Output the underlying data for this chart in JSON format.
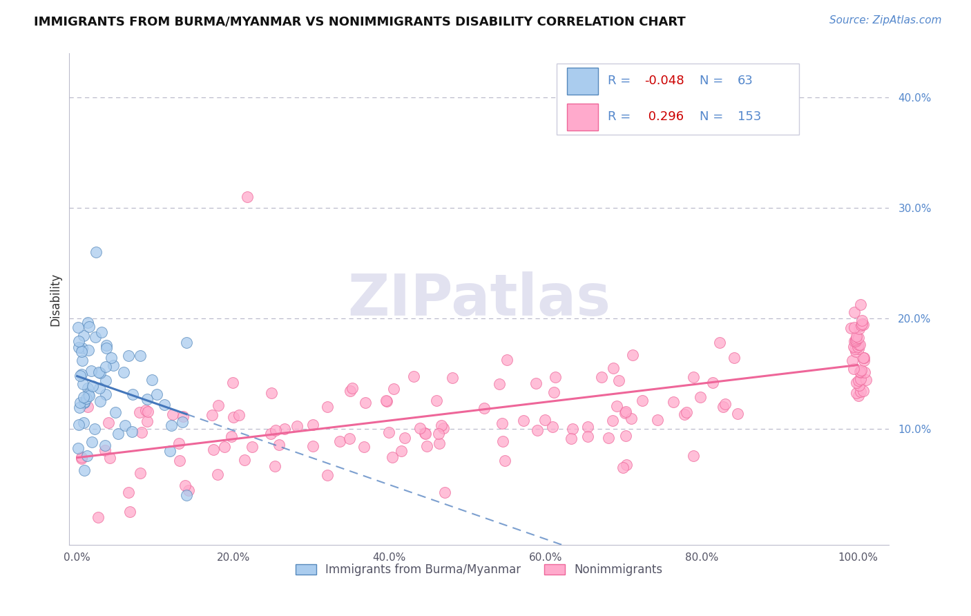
{
  "title": "IMMIGRANTS FROM BURMA/MYANMAR VS NONIMMIGRANTS DISABILITY CORRELATION CHART",
  "source": "Source: ZipAtlas.com",
  "ylabel": "Disability",
  "xlim": [
    -0.01,
    1.04
  ],
  "ylim": [
    -0.005,
    0.44
  ],
  "xticks": [
    0.0,
    0.2,
    0.4,
    0.6,
    0.8,
    1.0
  ],
  "xticklabels": [
    "0.0%",
    "20.0%",
    "40.0%",
    "60.0%",
    "80.0%",
    "100.0%"
  ],
  "yticks": [
    0.1,
    0.2,
    0.3,
    0.4
  ],
  "yticklabels": [
    "10.0%",
    "20.0%",
    "30.0%",
    "40.0%"
  ],
  "watermark_text": "ZIPatlas",
  "legend_r1": "-0.048",
  "legend_n1": "63",
  "legend_r2": "0.296",
  "legend_n2": "153",
  "blue_fill": "#AACCEE",
  "blue_edge": "#5588BB",
  "blue_line": "#4477BB",
  "pink_fill": "#FFAACC",
  "pink_edge": "#EE6699",
  "pink_line": "#EE6699",
  "tick_color": "#5588CC",
  "grid_color": "#BBBBCC",
  "legend_r_color": "#CC0000",
  "legend_n_color": "#5588CC",
  "bottom_legend_labels": [
    "Immigrants from Burma/Myanmar",
    "Nonimmigrants"
  ]
}
